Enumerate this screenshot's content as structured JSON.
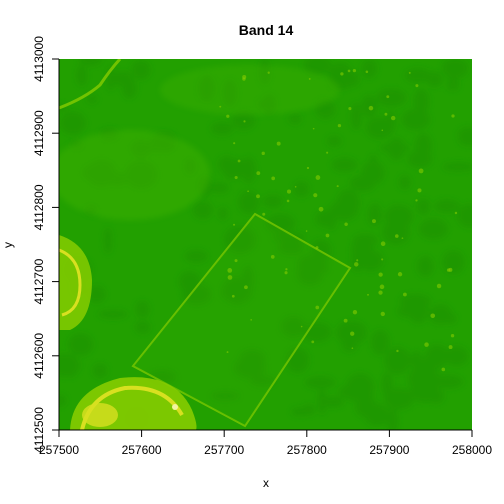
{
  "chart_data": {
    "type": "heatmap",
    "title": "Band 14",
    "xlabel": "x",
    "ylabel": "y",
    "xlim": [
      257500,
      258000
    ],
    "ylim": [
      4112500,
      4113000
    ],
    "x_ticks": [
      {
        "value": 257500,
        "label": "257500"
      },
      {
        "value": 257600,
        "label": "257600"
      },
      {
        "value": 257700,
        "label": "257700"
      },
      {
        "value": 257800,
        "label": "257800"
      },
      {
        "value": 257900,
        "label": "257900"
      },
      {
        "value": 258000,
        "label": "258000"
      }
    ],
    "y_ticks": [
      {
        "value": 4112500,
        "label": "4112500"
      },
      {
        "value": 4112600,
        "label": "4112600"
      },
      {
        "value": 4112700,
        "label": "4112700"
      },
      {
        "value": 4112800,
        "label": "4112800"
      },
      {
        "value": 4112900,
        "label": "4112900"
      },
      {
        "value": 4113000,
        "label": "4113000"
      }
    ],
    "colors": {
      "base": "#22a000",
      "dark": "#1b9200",
      "light": "#3fb200",
      "bright": "#86cc00",
      "highlight": "#d8e020"
    }
  }
}
